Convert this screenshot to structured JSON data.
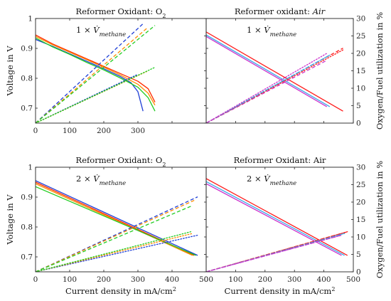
{
  "chart_data": [
    {
      "type": "line",
      "panel": "top-left",
      "title": "Reformer Oxidant: O",
      "title_sub": "2",
      "annotation": {
        "prefix": "1 × ",
        "symbol": "V̇",
        "sub": "methane"
      },
      "xlim": [
        0,
        500
      ],
      "xticks": [
        0,
        100,
        200,
        300,
        400,
        500
      ],
      "xtick_labels": [
        "0",
        "100",
        "200",
        "300",
        "",
        ""
      ],
      "ylim": [
        0.65,
        1.0
      ],
      "yticks": [
        0.7,
        0.8,
        0.9,
        1.0
      ],
      "ytick_labels": [
        "0.7",
        "0.8",
        "0.9",
        "1"
      ],
      "ylabel": "Voltage in V",
      "xlabel": "",
      "y2lim": [
        0,
        30
      ],
      "y2ticks": [
        0,
        5,
        10,
        15,
        20,
        25,
        30
      ],
      "y2tick_labels": [],
      "y2label": "",
      "series": [
        {
          "color": "#ff2a00",
          "style": "solid",
          "axis": "left",
          "x": [
            0,
            50,
            100,
            150,
            200,
            250,
            300,
            330,
            350
          ],
          "y": [
            0.945,
            0.915,
            0.89,
            0.865,
            0.84,
            0.815,
            0.79,
            0.765,
            0.72
          ]
        },
        {
          "color": "#ff8c00",
          "style": "solid",
          "axis": "left",
          "x": [
            0,
            50,
            100,
            150,
            200,
            250,
            300,
            330,
            350
          ],
          "y": [
            0.94,
            0.912,
            0.887,
            0.862,
            0.837,
            0.81,
            0.78,
            0.75,
            0.71
          ]
        },
        {
          "color": "#1f3fd6",
          "style": "solid",
          "axis": "left",
          "x": [
            0,
            50,
            100,
            150,
            200,
            250,
            280,
            300,
            315
          ],
          "y": [
            0.93,
            0.907,
            0.882,
            0.857,
            0.832,
            0.805,
            0.785,
            0.755,
            0.69
          ]
        },
        {
          "color": "#22cc22",
          "style": "solid",
          "axis": "left",
          "x": [
            0,
            50,
            100,
            150,
            200,
            250,
            300,
            330,
            350
          ],
          "y": [
            0.935,
            0.905,
            0.88,
            0.853,
            0.828,
            0.8,
            0.77,
            0.735,
            0.69
          ]
        },
        {
          "color": "#1f3fd6",
          "style": "dashed",
          "axis": "right",
          "x": [
            0,
            315
          ],
          "y": [
            0,
            28.5
          ]
        },
        {
          "color": "#ff8c00",
          "style": "dashed",
          "axis": "right",
          "x": [
            0,
            330
          ],
          "y": [
            0,
            27.5
          ]
        },
        {
          "color": "#22cc22",
          "style": "dashed",
          "axis": "right",
          "x": [
            0,
            350
          ],
          "y": [
            0,
            28.0
          ]
        },
        {
          "color": "#1f3fd6",
          "style": "dotted",
          "axis": "right",
          "x": [
            0,
            300
          ],
          "y": [
            0,
            14.0
          ]
        },
        {
          "color": "#ff8c00",
          "style": "dotted",
          "axis": "right",
          "x": [
            0,
            330
          ],
          "y": [
            0,
            15.0
          ]
        },
        {
          "color": "#22cc22",
          "style": "dotted",
          "axis": "right",
          "x": [
            0,
            350
          ],
          "y": [
            0,
            16.0
          ]
        }
      ]
    },
    {
      "type": "line",
      "panel": "top-right",
      "title": "Reformer oxidant: ",
      "title_italic": "Air",
      "annotation": {
        "prefix": "1 × ",
        "symbol": "V̇",
        "sub": "methane"
      },
      "xlim": [
        0,
        500
      ],
      "xticks": [
        0,
        100,
        200,
        300,
        400,
        500
      ],
      "xtick_labels": [],
      "ylim": [
        0.65,
        1.0
      ],
      "yticks": [
        0.7,
        0.8,
        0.9,
        1.0
      ],
      "ytick_labels": [],
      "ylabel": "",
      "xlabel": "",
      "y2lim": [
        0,
        30
      ],
      "y2ticks": [
        0,
        5,
        10,
        15,
        20,
        25,
        30
      ],
      "y2tick_labels": [
        "0",
        "5",
        "10",
        "15",
        "20",
        "25",
        "30"
      ],
      "y2label": "Oxygen/Fuel utilization in %",
      "series": [
        {
          "color": "#ff1a1a",
          "style": "solid",
          "axis": "left",
          "x": [
            0,
            465
          ],
          "y": [
            0.955,
            0.69
          ]
        },
        {
          "color": "#3aa8e8",
          "style": "solid",
          "axis": "left",
          "x": [
            0,
            420
          ],
          "y": [
            0.945,
            0.705
          ]
        },
        {
          "color": "#cc33cc",
          "style": "solid",
          "axis": "left",
          "x": [
            0,
            410
          ],
          "y": [
            0.94,
            0.705
          ]
        },
        {
          "color": "#ff1a1a",
          "style": "dashed",
          "axis": "right",
          "x": [
            0,
            465
          ],
          "y": [
            0,
            21.5
          ]
        },
        {
          "color": "#3aa8e8",
          "style": "dashed",
          "axis": "right",
          "x": [
            0,
            420
          ],
          "y": [
            0,
            19.5
          ]
        },
        {
          "color": "#cc33cc",
          "style": "dashed",
          "axis": "right",
          "x": [
            0,
            410
          ],
          "y": [
            0,
            18.0
          ]
        },
        {
          "color": "#ff1a1a",
          "style": "dotted",
          "axis": "right",
          "x": [
            0,
            465
          ],
          "y": [
            0,
            21.0
          ]
        },
        {
          "color": "#3aa8e8",
          "style": "dotted",
          "axis": "right",
          "x": [
            0,
            420
          ],
          "y": [
            0,
            19.5
          ]
        },
        {
          "color": "#cc33cc",
          "style": "dotted",
          "axis": "right",
          "x": [
            0,
            410
          ],
          "y": [
            0,
            20.0
          ]
        }
      ]
    },
    {
      "type": "line",
      "panel": "bottom-left",
      "title": "Reformer Oxidant: O",
      "title_sub": "2",
      "annotation": {
        "prefix": "2 × ",
        "symbol": "V̇",
        "sub": "methane"
      },
      "xlim": [
        0,
        500
      ],
      "xticks": [
        0,
        100,
        200,
        300,
        400,
        500
      ],
      "xtick_labels": [
        "0",
        "100",
        "200",
        "300",
        "400",
        "500"
      ],
      "ylim": [
        0.65,
        1.0
      ],
      "yticks": [
        0.7,
        0.8,
        0.9,
        1.0
      ],
      "ytick_labels": [
        "0.7",
        "0.8",
        "0.9",
        "1"
      ],
      "ylabel": "Voltage in V",
      "xlabel": "Current density in mA/cm",
      "xlabel_sup": "2",
      "y2lim": [
        0,
        30
      ],
      "y2ticks": [
        0,
        5,
        10,
        15,
        20,
        25,
        30
      ],
      "y2tick_labels": [],
      "y2label": "",
      "series": [
        {
          "color": "#1f3fd6",
          "style": "solid",
          "axis": "left",
          "x": [
            0,
            475
          ],
          "y": [
            0.955,
            0.705
          ]
        },
        {
          "color": "#ff2a00",
          "style": "solid",
          "axis": "left",
          "x": [
            0,
            465
          ],
          "y": [
            0.95,
            0.705
          ]
        },
        {
          "color": "#ff8c00",
          "style": "solid",
          "axis": "left",
          "x": [
            0,
            460
          ],
          "y": [
            0.945,
            0.705
          ]
        },
        {
          "color": "#22cc22",
          "style": "solid",
          "axis": "left",
          "x": [
            0,
            470
          ],
          "y": [
            0.935,
            0.705
          ]
        },
        {
          "color": "#1f3fd6",
          "style": "dashed",
          "axis": "right",
          "x": [
            0,
            475
          ],
          "y": [
            0,
            21.5
          ]
        },
        {
          "color": "#ff8c00",
          "style": "dashed",
          "axis": "right",
          "x": [
            0,
            465
          ],
          "y": [
            0,
            20.5
          ]
        },
        {
          "color": "#22cc22",
          "style": "dashed",
          "axis": "right",
          "x": [
            0,
            460
          ],
          "y": [
            0,
            19.0
          ]
        },
        {
          "color": "#1f3fd6",
          "style": "dotted",
          "axis": "right",
          "x": [
            0,
            475
          ],
          "y": [
            0,
            10.5
          ]
        },
        {
          "color": "#ff8c00",
          "style": "dotted",
          "axis": "right",
          "x": [
            0,
            460
          ],
          "y": [
            0,
            11.0
          ]
        },
        {
          "color": "#22cc22",
          "style": "dotted",
          "axis": "right",
          "x": [
            0,
            455
          ],
          "y": [
            0,
            11.5
          ]
        }
      ]
    },
    {
      "type": "line",
      "panel": "bottom-right",
      "title": "Reformer Oxidant: Air",
      "annotation": {
        "prefix": "2 × ",
        "symbol": "V̇",
        "sub": "methane"
      },
      "xlim": [
        0,
        500
      ],
      "xticks": [
        0,
        100,
        200,
        300,
        400,
        500
      ],
      "xtick_labels": [
        "0",
        "100",
        "200",
        "300",
        "400",
        "500"
      ],
      "ylim": [
        0.65,
        1.0
      ],
      "yticks": [
        0.7,
        0.8,
        0.9,
        1.0
      ],
      "ytick_labels": [],
      "ylabel": "",
      "xlabel": "Current density in mA/cm",
      "xlabel_sup": "2",
      "y2lim": [
        0,
        30
      ],
      "y2ticks": [
        0,
        5,
        10,
        15,
        20,
        25,
        30
      ],
      "y2tick_labels": [
        "0",
        "5",
        "10",
        "15",
        "20",
        "25",
        "30"
      ],
      "y2label": "Oxygen/Fuel utilization in %",
      "series": [
        {
          "color": "#ff1a1a",
          "style": "solid",
          "axis": "left",
          "x": [
            0,
            480
          ],
          "y": [
            0.962,
            0.705
          ]
        },
        {
          "color": "#3aa8e8",
          "style": "solid",
          "axis": "left",
          "x": [
            0,
            470
          ],
          "y": [
            0.952,
            0.705
          ]
        },
        {
          "color": "#cc33cc",
          "style": "solid",
          "axis": "left",
          "x": [
            0,
            460
          ],
          "y": [
            0.945,
            0.705
          ]
        },
        {
          "color": "#ff1a1a",
          "style": "dashed",
          "axis": "right",
          "x": [
            0,
            480
          ],
          "y": [
            0,
            11.5
          ]
        },
        {
          "color": "#3aa8e8",
          "style": "dashed",
          "axis": "right",
          "x": [
            0,
            470
          ],
          "y": [
            0,
            11.0
          ]
        },
        {
          "color": "#cc33cc",
          "style": "dashed",
          "axis": "right",
          "x": [
            0,
            460
          ],
          "y": [
            0,
            10.5
          ]
        },
        {
          "color": "#ff1a1a",
          "style": "dotted",
          "axis": "right",
          "x": [
            0,
            480
          ],
          "y": [
            0,
            11.5
          ]
        },
        {
          "color": "#3aa8e8",
          "style": "dotted",
          "axis": "right",
          "x": [
            0,
            470
          ],
          "y": [
            0,
            11.0
          ]
        },
        {
          "color": "#cc33cc",
          "style": "dotted",
          "axis": "right",
          "x": [
            0,
            460
          ],
          "y": [
            0,
            10.5
          ]
        }
      ]
    }
  ]
}
